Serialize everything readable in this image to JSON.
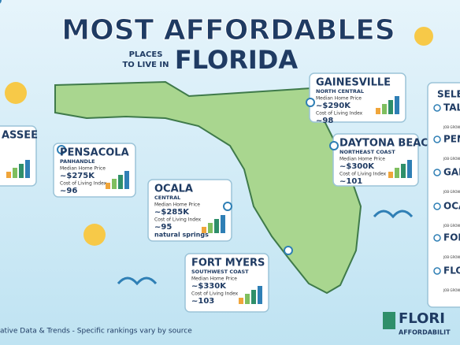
{
  "header": {
    "title": "MOST AFFORDABLES",
    "subtitle_lines": [
      "PLACES",
      "TO LIVE IN"
    ],
    "state": "FLORIDA"
  },
  "cards": [
    {
      "name": "GAINESVILLE",
      "region": "NORTH CENTRAL",
      "price_label": "Median Home Price",
      "price": "~$290K",
      "index_label": "Cost of Living Index",
      "index": "~98"
    },
    {
      "name": "ASSEE"
    },
    {
      "name": "PENSACOLA",
      "region": "PANHANDLE",
      "price_label": "Median Home Price",
      "price": "~$275K",
      "index_label": "Cost of Living Index",
      "index": "~96"
    },
    {
      "name": "DAYTONA BEACH",
      "region": "NORTHEAST COAST",
      "price_label": "Median Home Price",
      "price": "~$300K",
      "index_label": "Cost of Living Index",
      "index": "~101"
    },
    {
      "name": "OCALA",
      "region": "CENTRAL",
      "price_label": "Median Home Price",
      "price": "~$285K",
      "index_label": "Cost of Living Index",
      "index": "~95",
      "note": "natural springs"
    },
    {
      "name": "FORT MYERS",
      "region": "SOUTHWEST COAST",
      "price_label": "Median Home Price",
      "price": "~$330K",
      "index_label": "Cost of Living Index",
      "index": "~103"
    }
  ],
  "side_panel": {
    "title": "SELE",
    "items": [
      {
        "name": "TAL",
        "label": "JOB GROW"
      },
      {
        "name": "PEN",
        "label": "JOB GROW"
      },
      {
        "name": "GAI",
        "label": "JOB GROW"
      },
      {
        "name": "OCA",
        "label": "JOB GROW"
      },
      {
        "name": "FOR",
        "label": "JOB GROW"
      },
      {
        "name": "FLO",
        "label": "JOB GROW"
      }
    ]
  },
  "footer": {
    "note": "ative Data & Trends - Specific rankings vary by source",
    "logo_lines": [
      "FLORI",
      "AFFORDABILIT"
    ]
  }
}
